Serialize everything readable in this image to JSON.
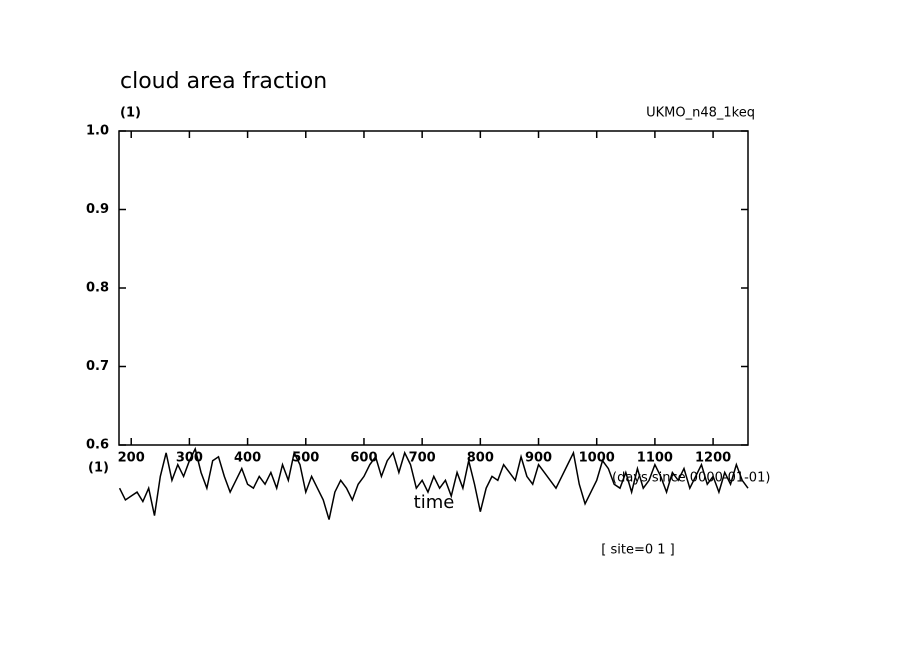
{
  "chart_data": {
    "type": "line",
    "title": "cloud area fraction",
    "y_units": "(1)",
    "x_units": "(1)",
    "dataset": "UKMO_n48_1keq",
    "xlabel": "time",
    "x_note": "(days since 0000-01-01)",
    "footer": "[ site=0 1 ]",
    "xlim": [
      179,
      1260
    ],
    "ylim": [
      0.6,
      1
    ],
    "xticks": [
      200,
      300,
      400,
      500,
      600,
      700,
      800,
      900,
      1000,
      1100,
      1200
    ],
    "yticks": [
      0.6,
      0.7,
      0.8,
      0.9,
      {
        "value": 1,
        "label": "1.0"
      }
    ],
    "x": [
      180,
      190,
      200,
      210,
      220,
      230,
      240,
      250,
      260,
      270,
      280,
      290,
      300,
      310,
      320,
      330,
      340,
      350,
      360,
      370,
      380,
      390,
      400,
      410,
      420,
      430,
      440,
      450,
      460,
      470,
      480,
      490,
      500,
      510,
      520,
      530,
      540,
      550,
      560,
      570,
      580,
      590,
      600,
      610,
      620,
      630,
      640,
      650,
      660,
      670,
      680,
      690,
      700,
      710,
      720,
      730,
      740,
      750,
      760,
      770,
      780,
      790,
      800,
      810,
      820,
      830,
      840,
      850,
      860,
      870,
      880,
      890,
      900,
      910,
      920,
      930,
      940,
      950,
      960,
      970,
      980,
      990,
      1000,
      1010,
      1020,
      1030,
      1040,
      1050,
      1060,
      1070,
      1080,
      1090,
      1100,
      1110,
      1120,
      1130,
      1140,
      1150,
      1160,
      1170,
      1180,
      1190,
      1200,
      1210,
      1220,
      1230,
      1240,
      1250,
      1260
    ],
    "series": [
      {
        "color": "#000000",
        "values": [
          0.545,
          0.53,
          0.535,
          0.54,
          0.528,
          0.545,
          0.51,
          0.56,
          0.59,
          0.555,
          0.575,
          0.56,
          0.58,
          0.595,
          0.565,
          0.545,
          0.58,
          0.585,
          0.56,
          0.54,
          0.555,
          0.57,
          0.55,
          0.545,
          0.56,
          0.55,
          0.565,
          0.545,
          0.575,
          0.555,
          0.59,
          0.575,
          0.54,
          0.56,
          0.545,
          0.53,
          0.505,
          0.54,
          0.555,
          0.545,
          0.53,
          0.55,
          0.56,
          0.575,
          0.585,
          0.56,
          0.58,
          0.59,
          0.565,
          0.59,
          0.575,
          0.545,
          0.555,
          0.54,
          0.56,
          0.545,
          0.555,
          0.535,
          0.565,
          0.545,
          0.58,
          0.55,
          0.515,
          0.545,
          0.56,
          0.555,
          0.575,
          0.565,
          0.555,
          0.585,
          0.56,
          0.55,
          0.575,
          0.565,
          0.555,
          0.545,
          0.56,
          0.575,
          0.59,
          0.55,
          0.525,
          0.54,
          0.555,
          0.58,
          0.57,
          0.55,
          0.545,
          0.565,
          0.54,
          0.57,
          0.545,
          0.555,
          0.575,
          0.56,
          0.54,
          0.565,
          0.555,
          0.57,
          0.545,
          0.56,
          0.575,
          0.55,
          0.56,
          0.54,
          0.565,
          0.55,
          0.575,
          0.555,
          0.545
        ]
      }
    ]
  }
}
